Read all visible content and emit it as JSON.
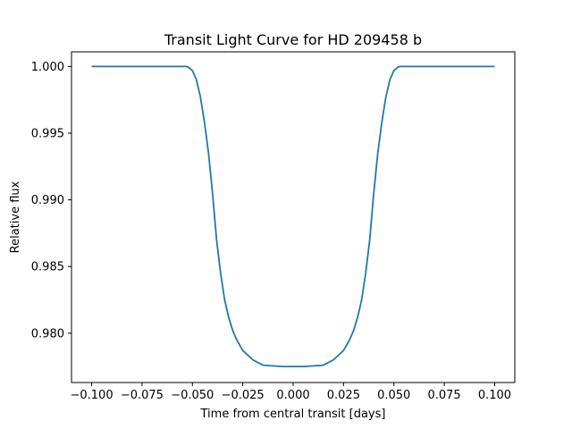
{
  "chart_data": {
    "type": "line",
    "title": "Transit Light Curve for HD 209458 b",
    "xlabel": "Time from central transit [days]",
    "ylabel": "Relative flux",
    "xlim": [
      -0.11,
      0.11
    ],
    "ylim": [
      0.9763,
      1.0011
    ],
    "xticks": [
      -0.1,
      -0.075,
      -0.05,
      -0.025,
      0.0,
      0.025,
      0.05,
      0.075,
      0.1
    ],
    "xtick_labels": [
      "−0.100",
      "−0.075",
      "−0.050",
      "−0.025",
      "0.000",
      "0.025",
      "0.050",
      "0.075",
      "0.100"
    ],
    "yticks": [
      0.98,
      0.985,
      0.99,
      0.995,
      1.0
    ],
    "ytick_labels": [
      "0.980",
      "0.985",
      "0.990",
      "0.995",
      "1.000"
    ],
    "grid": false,
    "line_color": "#1f77b4",
    "series": [
      {
        "x": [
          -0.1,
          -0.09,
          -0.08,
          -0.07,
          -0.06,
          -0.053,
          -0.052,
          -0.05,
          -0.048,
          -0.046,
          -0.044,
          -0.042,
          -0.04,
          -0.038,
          -0.036,
          -0.034,
          -0.032,
          -0.03,
          -0.028,
          -0.025,
          -0.02,
          -0.015,
          -0.01,
          -0.005,
          0.0,
          0.005,
          0.01,
          0.015,
          0.02,
          0.025,
          0.028,
          0.03,
          0.032,
          0.034,
          0.036,
          0.038,
          0.04,
          0.042,
          0.044,
          0.046,
          0.048,
          0.05,
          0.052,
          0.053,
          0.06,
          0.07,
          0.08,
          0.09,
          0.1
        ],
        "y": [
          1.0,
          1.0,
          1.0,
          1.0,
          1.0,
          1.0,
          0.99995,
          0.9997,
          0.999,
          0.9977,
          0.9958,
          0.9935,
          0.9905,
          0.987,
          0.9845,
          0.9825,
          0.9812,
          0.9802,
          0.9795,
          0.9787,
          0.978,
          0.9776,
          0.97755,
          0.9775,
          0.9775,
          0.9775,
          0.97755,
          0.9776,
          0.978,
          0.9787,
          0.9795,
          0.9802,
          0.9812,
          0.9825,
          0.9845,
          0.987,
          0.9905,
          0.9935,
          0.9958,
          0.9977,
          0.999,
          0.9997,
          0.99995,
          1.0,
          1.0,
          1.0,
          1.0,
          1.0,
          1.0
        ]
      }
    ]
  }
}
